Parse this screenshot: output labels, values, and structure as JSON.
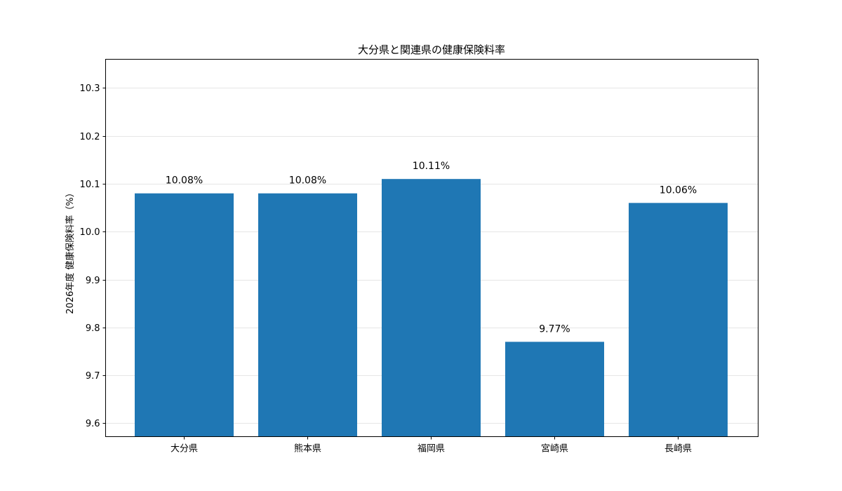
{
  "chart_data": {
    "type": "bar",
    "title": "大分県と関連県の健康保険料率",
    "xlabel": "",
    "ylabel": "2026年度 健康保険料率（%）",
    "categories": [
      "大分県",
      "熊本県",
      "福岡県",
      "宮崎県",
      "長崎県"
    ],
    "values": [
      10.08,
      10.08,
      10.11,
      9.77,
      10.06
    ],
    "data_labels": [
      "10.08%",
      "10.08%",
      "10.11%",
      "9.77%",
      "10.06%"
    ],
    "ylim": [
      9.572,
      10.36
    ],
    "yticks": [
      9.6,
      9.7,
      9.8,
      9.9,
      10.0,
      10.1,
      10.2,
      10.3
    ],
    "ytick_labels": [
      "9.6",
      "9.7",
      "9.8",
      "9.9",
      "10.0",
      "10.1",
      "10.2",
      "10.3"
    ],
    "grid": "horizontal",
    "bar_color": "#1f77b4"
  }
}
